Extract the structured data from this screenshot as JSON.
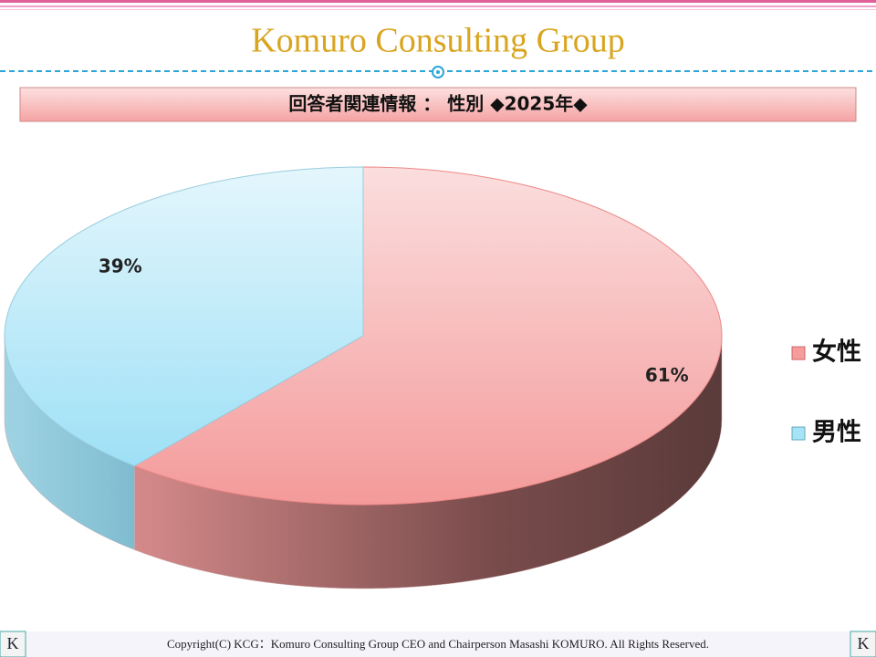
{
  "header": {
    "title": "Komuro Consulting Group",
    "banner": "回答者関連情報 ： 性別 ◆2025年◆"
  },
  "chart_data": {
    "type": "pie",
    "categories": [
      "女性",
      "男性"
    ],
    "values": [
      61,
      39
    ],
    "value_labels": [
      "61%",
      "39%"
    ],
    "colors": [
      "#f59c9c",
      "#a6e3f7"
    ]
  },
  "footer": {
    "copyright": "Copyright(C) KCG：Komuro Consulting Group CEO and Chairperson Masashi KOMURO. All Rights Reserved.",
    "logo": "K"
  }
}
